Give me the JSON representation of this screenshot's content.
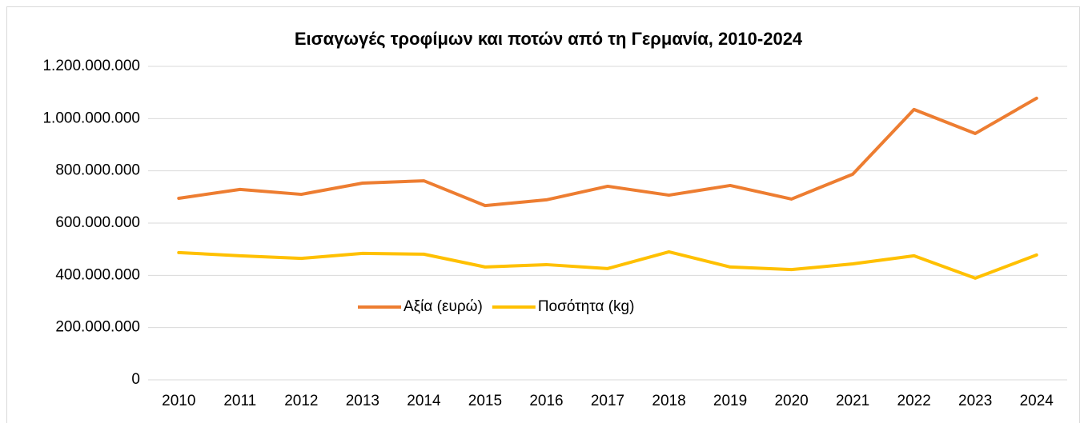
{
  "chart_data": {
    "type": "line",
    "title": "Εισαγωγές τροφίμων και ποτών από τη Γερμανία, 2010-2024",
    "categories": [
      "2010",
      "2011",
      "2012",
      "2013",
      "2014",
      "2015",
      "2016",
      "2017",
      "2018",
      "2019",
      "2020",
      "2021",
      "2022",
      "2023",
      "2024"
    ],
    "series": [
      {
        "name": "Αξία (ευρώ)",
        "color": "#ed7d31",
        "values": [
          695000000,
          729000000,
          710000000,
          753000000,
          762000000,
          667000000,
          689000000,
          741000000,
          707000000,
          744000000,
          692000000,
          787000000,
          1035000000,
          943000000,
          1078000000
        ]
      },
      {
        "name": "Ποσότητα (kg)",
        "color": "#ffc000",
        "values": [
          487000000,
          475000000,
          465000000,
          484000000,
          481000000,
          432000000,
          441000000,
          426000000,
          490000000,
          432000000,
          422000000,
          444000000,
          475000000,
          389000000,
          478000000
        ]
      }
    ],
    "ylim": [
      0,
      1200000000
    ],
    "yticks": [
      0,
      {
        "value": 200000000,
        "label": "200.000.000"
      },
      {
        "value": 400000000,
        "label": "400.000.000"
      },
      {
        "value": 600000000,
        "label": "600.000.000"
      },
      {
        "value": 800000000,
        "label": "800.000.000"
      },
      {
        "value": 1000000000,
        "label": "1.000.000.000"
      },
      {
        "value": 1200000000,
        "label": "1.200.000.000"
      }
    ],
    "grid": true,
    "legend": "center"
  }
}
